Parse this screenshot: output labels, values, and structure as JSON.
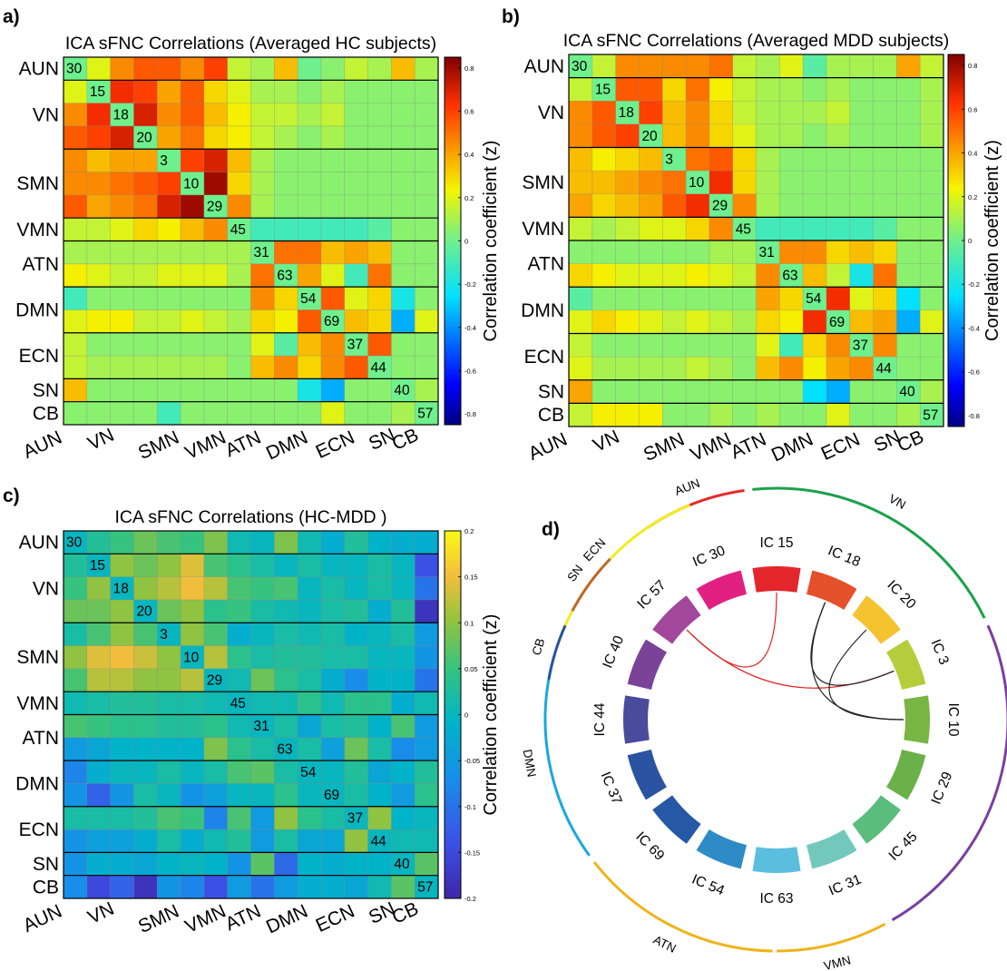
{
  "network_order": [
    "AUN",
    "VN",
    "SMN",
    "VMN",
    "ATN",
    "DMN",
    "ECN",
    "SN",
    "CB"
  ],
  "network_sizes": [
    1,
    3,
    3,
    1,
    2,
    2,
    2,
    1,
    1
  ],
  "diagonal_labels": [
    "30",
    "15",
    "18",
    "20",
    "3",
    "10",
    "29",
    "45",
    "31",
    "63",
    "54",
    "69",
    "37",
    "44",
    "40",
    "57"
  ],
  "x_tick_labels": [
    "AUN",
    "VN",
    "SMN",
    "VMN",
    "ATN",
    "DMN",
    "ECN",
    "SN",
    "CB"
  ],
  "colorbar_label": "Correlation coefficient (z)",
  "chart_data": [
    {
      "panel": "a)",
      "type": "heatmap",
      "title": "ICA sFNC Correlations (Averaged HC subjects)",
      "colormap": "jet",
      "clim": [
        -0.85,
        0.85
      ],
      "colorbar_ticks": [
        "0.8",
        "0.6",
        "0.4",
        "0.2",
        "0",
        "-0.2",
        "-0.4",
        "-0.6",
        "-0.8"
      ],
      "values": [
        [
          0,
          0.2,
          0.45,
          0.55,
          0.55,
          0.45,
          0.6,
          0.15,
          0.1,
          0.35,
          0,
          0.05,
          0.15,
          0.1,
          0.35,
          0.1
        ],
        [
          0.2,
          0,
          0.65,
          0.6,
          0.4,
          0.55,
          0.3,
          0.2,
          0.1,
          0.1,
          0.05,
          0.1,
          0.05,
          0.05,
          0.05,
          0.05
        ],
        [
          0.45,
          0.65,
          0,
          0.7,
          0.45,
          0.55,
          0.35,
          0.25,
          0.15,
          0.15,
          0.1,
          0.15,
          0.05,
          0.05,
          0.05,
          0.05
        ],
        [
          0.55,
          0.6,
          0.7,
          0,
          0.4,
          0.5,
          0.3,
          0.25,
          0.15,
          0.1,
          0.05,
          0.1,
          0.05,
          0.05,
          0.05,
          0.05
        ],
        [
          0.45,
          0.35,
          0.4,
          0.4,
          0,
          0.6,
          0.7,
          0.35,
          0.1,
          0.05,
          0.05,
          0.05,
          0.05,
          0.05,
          0.05,
          0.05
        ],
        [
          0.45,
          0.45,
          0.5,
          0.55,
          0.6,
          0,
          0.8,
          0.3,
          0.1,
          0.05,
          0.05,
          0.05,
          0.05,
          0.05,
          0.05,
          0.05
        ],
        [
          0.55,
          0.4,
          0.45,
          0.5,
          0.7,
          0.8,
          0,
          0.45,
          0.1,
          0.05,
          0.05,
          0.05,
          0.05,
          0.05,
          0.05,
          0.05
        ],
        [
          0.15,
          0.15,
          0.2,
          0.3,
          0.25,
          0.35,
          0.45,
          0,
          -0.1,
          -0.1,
          -0.1,
          -0.1,
          -0.1,
          -0.05,
          0.05,
          0.05
        ],
        [
          0.1,
          0.1,
          0.1,
          0.1,
          0.1,
          0.1,
          0.1,
          0.1,
          0,
          0.5,
          0.5,
          0.35,
          0.4,
          0.35,
          0.05,
          0.05
        ],
        [
          0.25,
          0.2,
          0.15,
          0.15,
          0.2,
          0.2,
          0.2,
          0.1,
          0.5,
          0,
          0.4,
          0.2,
          -0.1,
          0.5,
          0.05,
          0.05
        ],
        [
          -0.1,
          0.05,
          0.05,
          0.05,
          0.05,
          0.05,
          0.05,
          0.05,
          0.45,
          0.3,
          0,
          0.55,
          0.2,
          0.3,
          -0.2,
          0.05
        ],
        [
          0.2,
          0.25,
          0.25,
          0.15,
          0.15,
          0.2,
          0.15,
          0.1,
          0.3,
          0.25,
          0.55,
          0,
          0.35,
          0.3,
          -0.35,
          0.2
        ],
        [
          0.15,
          0.05,
          0.05,
          0.05,
          0.05,
          0.05,
          0.05,
          0.05,
          0.2,
          -0.05,
          0.35,
          0.45,
          0,
          0.55,
          0.05,
          0.05
        ],
        [
          0.15,
          0.1,
          0.1,
          0.1,
          0.1,
          0.1,
          0.1,
          0.05,
          0.35,
          0.45,
          0.3,
          0.45,
          0.55,
          0,
          0.05,
          0.05
        ],
        [
          0.35,
          0.05,
          0.05,
          0.05,
          0.05,
          0.05,
          0.05,
          0.05,
          0.05,
          0.05,
          -0.2,
          -0.35,
          0.05,
          0.05,
          0,
          0.1
        ],
        [
          0.05,
          0.05,
          0.05,
          0.05,
          -0.1,
          0.05,
          0.05,
          0.05,
          0.05,
          0.05,
          0.05,
          0.2,
          0.05,
          0.05,
          0.1,
          0
        ]
      ]
    },
    {
      "panel": "b)",
      "type": "heatmap",
      "title": "ICA sFNC Correlations (Averaged MDD subjects)",
      "colormap": "jet",
      "clim": [
        -0.85,
        0.85
      ],
      "colorbar_ticks": [
        "0.8",
        "0.6",
        "0.4",
        "0.2",
        "0",
        "-0.2",
        "-0.4",
        "-0.6",
        "-0.8"
      ],
      "values": [
        [
          0,
          0.15,
          0.45,
          0.45,
          0.45,
          0.45,
          0.5,
          0.15,
          0.1,
          0.2,
          -0.05,
          0.1,
          0.1,
          0.1,
          0.4,
          0.15
        ],
        [
          0.15,
          0,
          0.55,
          0.55,
          0.3,
          0.5,
          0.25,
          0.15,
          0.1,
          0.1,
          0.05,
          0.1,
          0.05,
          0.05,
          0.05,
          0.1
        ],
        [
          0.45,
          0.55,
          0,
          0.6,
          0.35,
          0.45,
          0.3,
          0.15,
          0.1,
          0.1,
          0.1,
          0.15,
          0.05,
          0.05,
          0.05,
          0.1
        ],
        [
          0.45,
          0.55,
          0.6,
          0,
          0.35,
          0.45,
          0.3,
          0.2,
          0.1,
          0.1,
          0.05,
          0.1,
          0.05,
          0.05,
          0.05,
          0.1
        ],
        [
          0.35,
          0.25,
          0.3,
          0.35,
          0,
          0.5,
          0.55,
          0.3,
          0.1,
          0.05,
          0.05,
          0.05,
          0.05,
          0.05,
          0.05,
          0.05
        ],
        [
          0.35,
          0.35,
          0.4,
          0.45,
          0.5,
          0,
          0.65,
          0.3,
          0.1,
          0.05,
          0.05,
          0.05,
          0.05,
          0.05,
          0.05,
          0.05
        ],
        [
          0.4,
          0.3,
          0.35,
          0.4,
          0.55,
          0.65,
          0,
          0.45,
          0.1,
          0.05,
          0.05,
          0.05,
          0.05,
          0.05,
          0.05,
          0.05
        ],
        [
          0.15,
          0.1,
          0.15,
          0.2,
          0.2,
          0.3,
          0.45,
          0,
          -0.1,
          -0.1,
          -0.1,
          -0.1,
          -0.1,
          -0.05,
          0.05,
          0.05
        ],
        [
          0.05,
          0.05,
          0.05,
          0.05,
          0.05,
          0.05,
          0.1,
          0.1,
          0,
          0.45,
          0.45,
          0.3,
          0.35,
          0.3,
          0.05,
          0.05
        ],
        [
          0.3,
          0.25,
          0.2,
          0.2,
          0.2,
          0.25,
          0.2,
          0.15,
          0.45,
          0,
          0.35,
          0.15,
          -0.2,
          0.5,
          0.05,
          0.05
        ],
        [
          -0.05,
          0.05,
          0.05,
          0.05,
          0.05,
          0.05,
          0.05,
          0.05,
          0.4,
          0.3,
          0,
          0.65,
          0.2,
          0.3,
          -0.25,
          0.05
        ],
        [
          0.2,
          0.3,
          0.25,
          0.2,
          0.15,
          0.2,
          0.15,
          0.1,
          0.3,
          0.25,
          0.65,
          0,
          0.35,
          0.4,
          -0.35,
          0.2
        ],
        [
          0.15,
          0.05,
          0.05,
          0.05,
          0.05,
          0.05,
          0.05,
          0.05,
          0.2,
          -0.1,
          0.3,
          0.45,
          0,
          0.45,
          0.05,
          0.05
        ],
        [
          0.2,
          0.1,
          0.1,
          0.1,
          0.1,
          0.15,
          0.1,
          0.05,
          0.35,
          0.45,
          0.25,
          0.4,
          0.45,
          0,
          0.05,
          0.05
        ],
        [
          0.4,
          0.05,
          0.05,
          0.05,
          0.05,
          0.05,
          0.05,
          0.05,
          0.05,
          0.05,
          -0.25,
          -0.35,
          0.05,
          0.05,
          0,
          0.1
        ],
        [
          0.15,
          0.25,
          0.25,
          0.25,
          0.05,
          0.05,
          0.1,
          0.05,
          0.1,
          0.05,
          0.05,
          0.2,
          0.05,
          0.05,
          0.1,
          0
        ]
      ]
    },
    {
      "panel": "c)",
      "type": "heatmap",
      "title": "ICA sFNC Correlations (HC-MDD )",
      "colormap": "parula",
      "clim": [
        -0.2,
        0.2
      ],
      "colorbar_ticks": [
        "0.2",
        "0.15",
        "0.1",
        "0.05",
        "0",
        "-0.05",
        "-0.1",
        "-0.15",
        "-0.2"
      ],
      "values": [
        [
          0,
          0.03,
          0.05,
          0.08,
          0.06,
          0.05,
          0.09,
          0.01,
          0,
          0.09,
          0.01,
          -0.02,
          0.03,
          -0.01,
          -0.02,
          -0.02
        ],
        [
          0.03,
          0,
          0.1,
          0.08,
          0.1,
          0.14,
          0.06,
          0.04,
          0.02,
          0,
          0.02,
          0,
          0,
          0.02,
          0,
          -0.14
        ],
        [
          0.05,
          0.1,
          0,
          0.1,
          0.12,
          0.15,
          0.12,
          0.06,
          0.05,
          0.06,
          0,
          0.02,
          0,
          0.02,
          0,
          -0.1
        ],
        [
          0.08,
          0.08,
          0.1,
          0,
          0.08,
          0.1,
          0.04,
          0.05,
          0.02,
          0.01,
          0,
          0.02,
          0.03,
          -0.02,
          0.03,
          -0.18
        ],
        [
          0.02,
          0.06,
          0.1,
          0.06,
          0,
          0.1,
          0.06,
          -0.02,
          0,
          0.02,
          0.01,
          0.02,
          -0.01,
          0,
          0.02,
          -0.05
        ],
        [
          0.1,
          0.14,
          0.15,
          0.13,
          0.1,
          0,
          0.12,
          0.04,
          0.02,
          0.03,
          0.03,
          0.02,
          0.02,
          0,
          0,
          -0.06
        ],
        [
          0.06,
          0.12,
          0.12,
          0.1,
          0.1,
          0.12,
          0,
          0.01,
          0.08,
          0.04,
          0.02,
          -0.02,
          -0.07,
          -0.01,
          -0.01,
          -0.1
        ],
        [
          0.01,
          0.02,
          0.03,
          0.03,
          0.02,
          0.02,
          0.01,
          0,
          0.01,
          0.01,
          0.04,
          0.01,
          0.04,
          0.04,
          -0.02,
          0.01
        ],
        [
          0.06,
          0.05,
          0.04,
          0.04,
          0.03,
          0.03,
          0.04,
          0.01,
          0,
          0.02,
          -0.03,
          0.02,
          0.03,
          -0.01,
          0.06,
          -0.05
        ],
        [
          -0.05,
          -0.03,
          -0.01,
          -0.01,
          -0.01,
          -0.01,
          0.09,
          0.04,
          0.02,
          0,
          0.02,
          -0.04,
          0.08,
          0.02,
          -0.07,
          -0.05
        ],
        [
          -0.08,
          -0.02,
          0,
          0,
          0.02,
          0,
          0.02,
          0.06,
          0.07,
          0.02,
          0,
          0,
          0.03,
          -0.03,
          -0.01,
          0.03
        ],
        [
          -0.06,
          -0.12,
          -0.06,
          0.02,
          0,
          -0.06,
          -0.04,
          0,
          0,
          0.04,
          0,
          0,
          0.02,
          -0.01,
          -0.05,
          0.04
        ],
        [
          0.02,
          0.02,
          0.02,
          0.03,
          0.06,
          0.05,
          -0.08,
          0.06,
          -0.05,
          0.1,
          0.04,
          0.02,
          0,
          0.1,
          -0.01,
          0
        ],
        [
          -0.06,
          -0.04,
          -0.04,
          -0.02,
          0.02,
          -0.02,
          0.01,
          0.03,
          -0.05,
          0.02,
          -0.03,
          -0.03,
          0.1,
          0,
          0.01,
          0.01
        ],
        [
          -0.06,
          -0.02,
          -0.02,
          -0.03,
          -0.01,
          0,
          -0.01,
          -0.06,
          0.07,
          -0.11,
          -0.01,
          -0.02,
          -0.01,
          -0.01,
          0,
          0.07
        ],
        [
          -0.07,
          -0.15,
          -0.12,
          -0.18,
          -0.06,
          -0.08,
          -0.14,
          -0.05,
          -0.1,
          -0.05,
          -0.02,
          -0.02,
          -0.03,
          0.01,
          0.07,
          0
        ]
      ]
    },
    {
      "panel": "d)",
      "type": "chord",
      "nodes": [
        {
          "label": "IC 15",
          "color": "#e3262c"
        },
        {
          "label": "IC 18",
          "color": "#e4502a"
        },
        {
          "label": "IC 20",
          "color": "#f5c230"
        },
        {
          "label": "IC 3",
          "color": "#b5cd3a"
        },
        {
          "label": "IC 10",
          "color": "#79b542"
        },
        {
          "label": "IC 29",
          "color": "#6bb14a"
        },
        {
          "label": "IC 45",
          "color": "#5bbd7d"
        },
        {
          "label": "IC 31",
          "color": "#72c9bb"
        },
        {
          "label": "IC 63",
          "color": "#5bbedf"
        },
        {
          "label": "IC 54",
          "color": "#2f8bc6"
        },
        {
          "label": "IC 69",
          "color": "#2559a6"
        },
        {
          "label": "IC 37",
          "color": "#2a54a1"
        },
        {
          "label": "IC 44",
          "color": "#4a4b9c"
        },
        {
          "label": "IC 40",
          "color": "#7a4399"
        },
        {
          "label": "IC 57",
          "color": "#a2489c"
        },
        {
          "label": "IC 30",
          "color": "#e12081"
        }
      ],
      "networks": [
        {
          "label": "AUN",
          "color": "#e22b2b"
        },
        {
          "label": "VN",
          "color": "#1aa24a"
        },
        {
          "label": "SMN",
          "color": "#7a3fa0"
        },
        {
          "label": "VMN",
          "color": "#f0b319"
        },
        {
          "label": "ATN",
          "color": "#f0b319"
        },
        {
          "label": "DMN",
          "color": "#1aa7e0"
        },
        {
          "label": "ECN",
          "color": "#f2ec22"
        },
        {
          "label": "SN",
          "color": "#c0662a"
        },
        {
          "label": "CB",
          "color": "#2a54a3"
        }
      ],
      "links": [
        {
          "from": "IC 15",
          "to": "IC 57",
          "color": "#e02020"
        },
        {
          "from": "IC 3",
          "to": "IC 57",
          "color": "#e02020"
        },
        {
          "from": "IC 18",
          "to": "IC 3",
          "color": "#222222"
        },
        {
          "from": "IC 18",
          "to": "IC 10",
          "color": "#222222"
        },
        {
          "from": "IC 20",
          "to": "IC 10",
          "color": "#222222"
        }
      ]
    }
  ]
}
